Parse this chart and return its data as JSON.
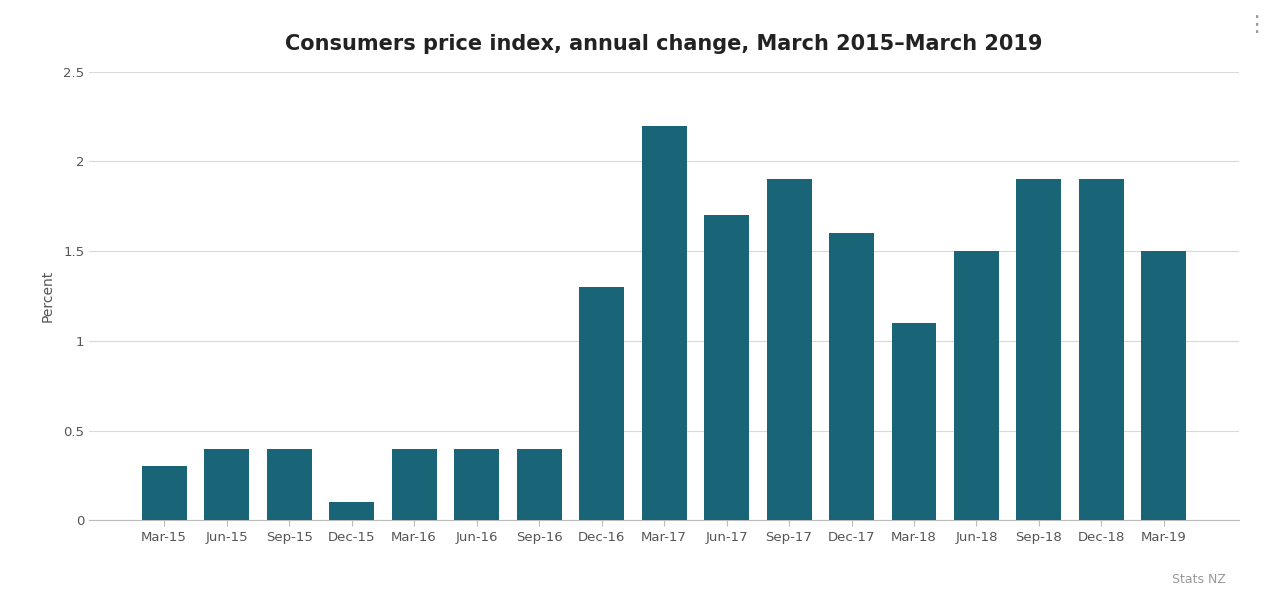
{
  "title": "Consumers price index, annual change, March 2015–March 2019",
  "ylabel": "Percent",
  "categories": [
    "Mar-15",
    "Jun-15",
    "Sep-15",
    "Dec-15",
    "Mar-16",
    "Jun-16",
    "Sep-16",
    "Dec-16",
    "Mar-17",
    "Jun-17",
    "Sep-17",
    "Dec-17",
    "Mar-18",
    "Jun-18",
    "Sep-18",
    "Dec-18",
    "Mar-19"
  ],
  "values": [
    0.3,
    0.4,
    0.4,
    0.1,
    0.4,
    0.4,
    0.4,
    1.3,
    2.2,
    1.7,
    1.9,
    1.6,
    1.1,
    1.5,
    1.9,
    1.9,
    1.5
  ],
  "bar_color": "#1a6478",
  "background_color": "#ffffff",
  "ylim": [
    0,
    2.5
  ],
  "ytick_values": [
    0,
    0.5,
    1.0,
    1.5,
    2.0,
    2.5
  ],
  "ytick_labels": [
    "0",
    "0.5",
    "1",
    "1.5",
    "2",
    "2.5"
  ],
  "title_fontsize": 15,
  "ylabel_fontsize": 10,
  "tick_fontsize": 9.5,
  "source_text": "Stats NZ",
  "grid_color": "#d9d9d9",
  "bar_width": 0.72
}
